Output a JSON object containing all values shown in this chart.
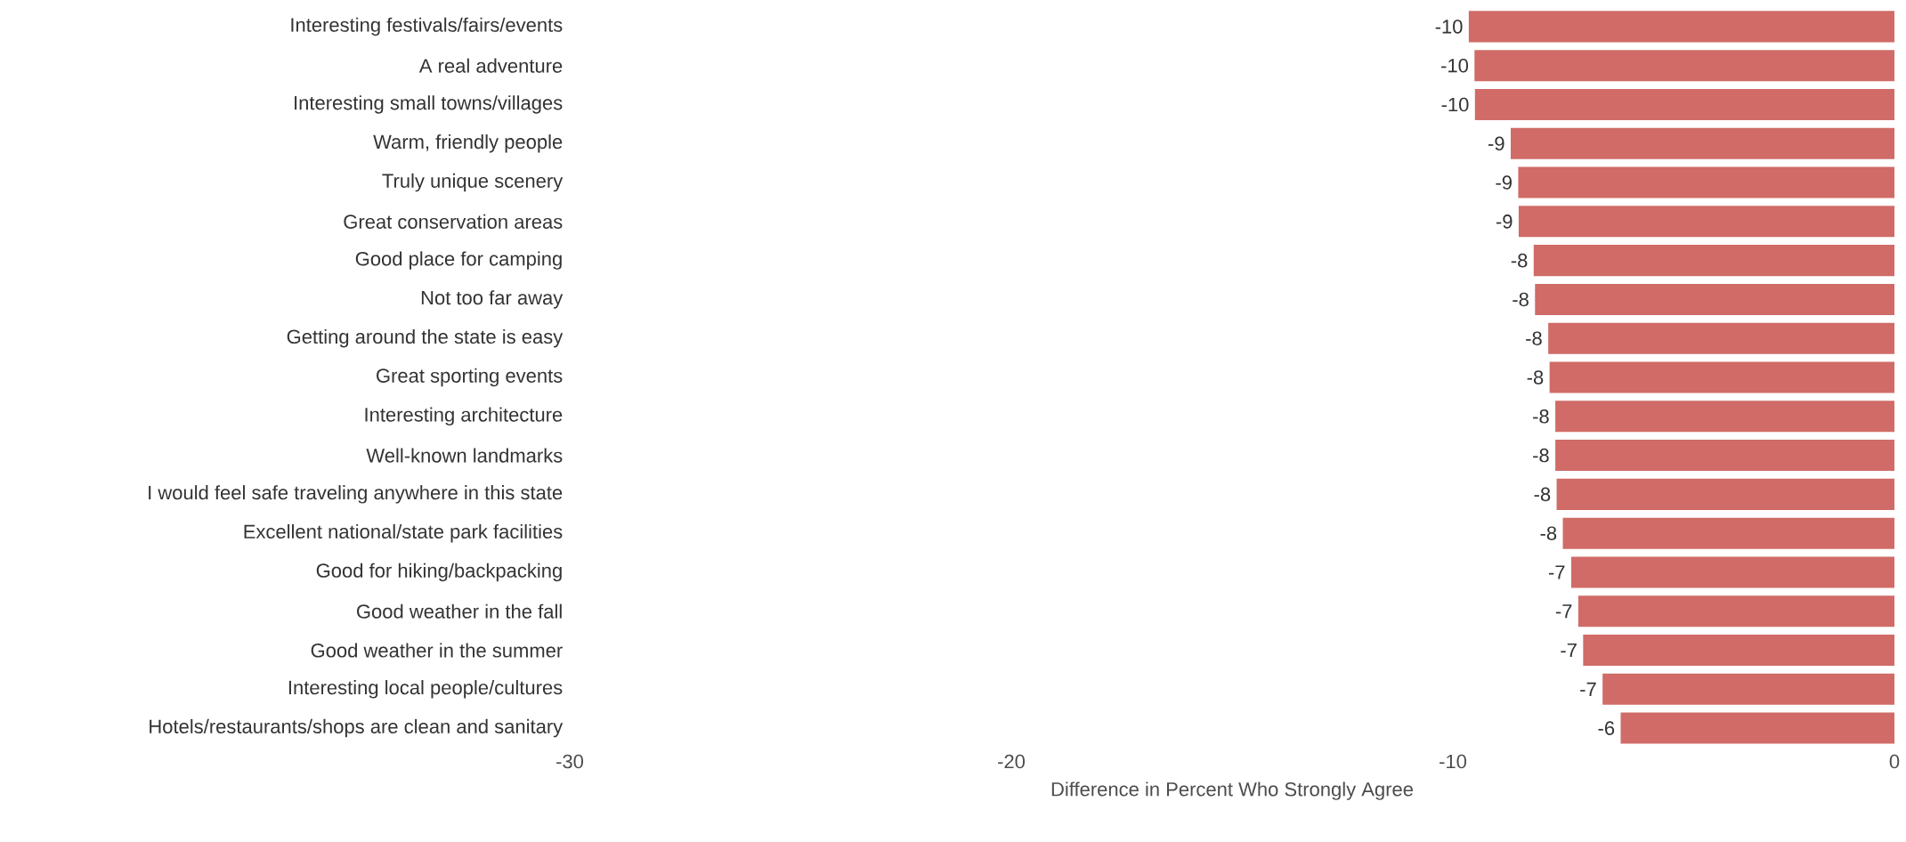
{
  "chart_data": {
    "type": "bar",
    "orientation": "horizontal",
    "xlabel": "Difference in Percent Who Strongly Agree",
    "categories": [
      "Interesting festivals/fairs/events",
      "A real adventure",
      "Interesting small towns/villages",
      "Warm, friendly people",
      "Truly unique scenery",
      "Great conservation areas",
      "Good place for camping",
      "Not too far away",
      "Getting around the state is easy",
      "Great sporting events",
      "Interesting architecture",
      "Well-known landmarks",
      "I would feel safe traveling anywhere in this state",
      "Excellent national/state park facilities",
      "Good for hiking/backpacking",
      "Good weather in the fall",
      "Good weather in the summer",
      "Interesting local people/cultures",
      "Hotels/restaurants/shops are clean and sanitary"
    ],
    "values": [
      -9.64,
      -9.51,
      -9.5,
      -8.69,
      -8.52,
      -8.51,
      -8.17,
      -8.14,
      -7.84,
      -7.81,
      -7.68,
      -7.68,
      -7.65,
      -7.51,
      -7.32,
      -7.16,
      -7.05,
      -6.61,
      -6.2
    ],
    "value_labels": [
      "-10",
      "-10",
      "-10",
      "-9",
      "-9",
      "-9",
      "-8",
      "-8",
      "-8",
      "-8",
      "-8",
      "-8",
      "-8",
      "-8",
      "-7",
      "-7",
      "-7",
      "-7",
      "-6"
    ],
    "color": "#d06b67",
    "xlim": [
      -30,
      0
    ],
    "xticks": [
      -30,
      -20,
      -10,
      0
    ]
  }
}
